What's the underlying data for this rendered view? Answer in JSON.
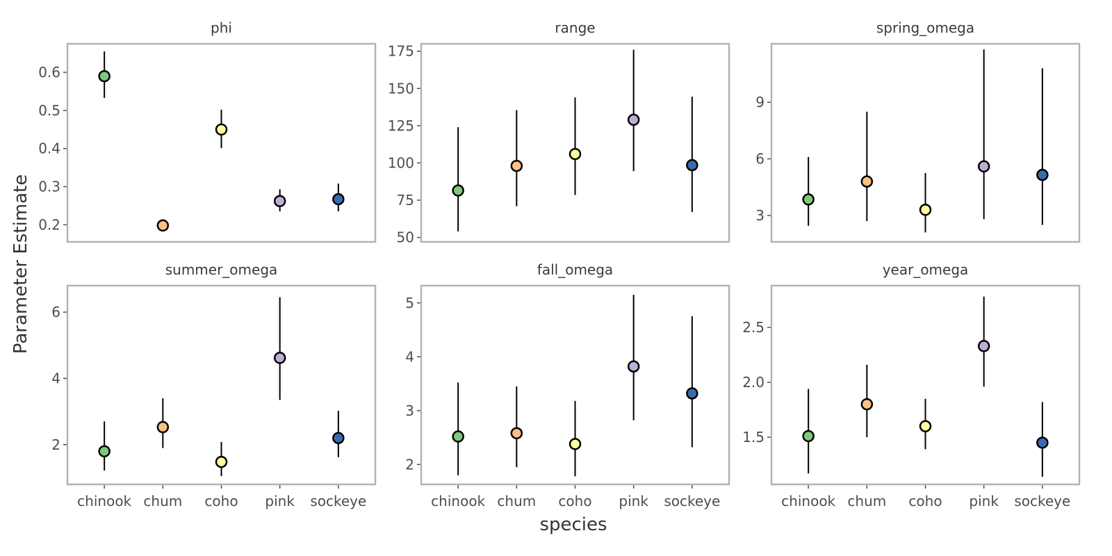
{
  "chart_data": {
    "type": "scatter",
    "subtype": "point-range facet grid",
    "xlabel": "species",
    "ylabel": "Parameter Estimate",
    "categories": [
      "chinook",
      "chum",
      "coho",
      "pink",
      "sockeye"
    ],
    "colors": {
      "chinook": "#7fc97f",
      "chum": "#fdc086",
      "coho": "#ffff99",
      "pink": "#beaed4",
      "sockeye": "#386cb0"
    },
    "grid": false,
    "legend": "none",
    "facets": [
      {
        "title": "phi",
        "ylim": [
          0.155,
          0.675
        ],
        "yticks": [
          0.2,
          0.3,
          0.4,
          0.5,
          0.6
        ],
        "ytick_labels": [
          "0.2",
          "0.3",
          "0.4",
          "0.5",
          "0.6"
        ],
        "estimate": [
          0.59,
          0.198,
          0.45,
          0.262,
          0.267
        ],
        "lower": [
          0.533,
          0.19,
          0.401,
          0.235,
          0.235
        ],
        "upper": [
          0.655,
          0.21,
          0.502,
          0.293,
          0.308
        ]
      },
      {
        "title": "range",
        "ylim": [
          47,
          180
        ],
        "yticks": [
          50,
          75,
          100,
          125,
          150,
          175
        ],
        "ytick_labels": [
          "50",
          "75",
          "100",
          "125",
          "150",
          "175"
        ],
        "estimate": [
          81.5,
          98,
          106,
          129,
          98.5
        ],
        "lower": [
          54,
          71,
          78.5,
          94.5,
          67
        ],
        "upper": [
          124,
          135.5,
          144,
          176,
          144.5
        ]
      },
      {
        "title": "spring_omega",
        "ylim": [
          1.6,
          12.1
        ],
        "yticks": [
          3,
          6,
          9
        ],
        "ytick_labels": [
          "3",
          "6",
          "9"
        ],
        "estimate": [
          3.85,
          4.8,
          3.3,
          5.6,
          5.15
        ],
        "lower": [
          2.45,
          2.7,
          2.1,
          2.8,
          2.5
        ],
        "upper": [
          6.1,
          8.5,
          5.25,
          11.8,
          10.8
        ]
      },
      {
        "title": "summer_omega",
        "ylim": [
          0.8,
          6.8
        ],
        "yticks": [
          2,
          4,
          6
        ],
        "ytick_labels": [
          "2",
          "4",
          "6"
        ],
        "estimate": [
          1.8,
          2.53,
          1.48,
          4.62,
          2.2
        ],
        "lower": [
          1.22,
          1.9,
          1.05,
          3.35,
          1.62
        ],
        "upper": [
          2.7,
          3.4,
          2.08,
          6.45,
          3.02
        ]
      },
      {
        "title": "fall_omega",
        "ylim": [
          1.63,
          5.32
        ],
        "yticks": [
          2,
          3,
          4,
          5
        ],
        "ytick_labels": [
          "2",
          "3",
          "4",
          "5"
        ],
        "estimate": [
          2.52,
          2.58,
          2.38,
          3.82,
          3.32
        ],
        "lower": [
          1.8,
          1.95,
          1.78,
          2.82,
          2.32
        ],
        "upper": [
          3.52,
          3.45,
          3.18,
          5.15,
          4.75
        ]
      },
      {
        "title": "year_omega",
        "ylim": [
          1.07,
          2.88
        ],
        "yticks": [
          1.5,
          2.0,
          2.5
        ],
        "ytick_labels": [
          "1.5",
          "2.0",
          "2.5"
        ],
        "estimate": [
          1.51,
          1.8,
          1.6,
          2.33,
          1.45
        ],
        "lower": [
          1.17,
          1.5,
          1.39,
          1.96,
          1.14
        ],
        "upper": [
          1.94,
          2.16,
          1.85,
          2.78,
          1.82
        ]
      }
    ]
  }
}
